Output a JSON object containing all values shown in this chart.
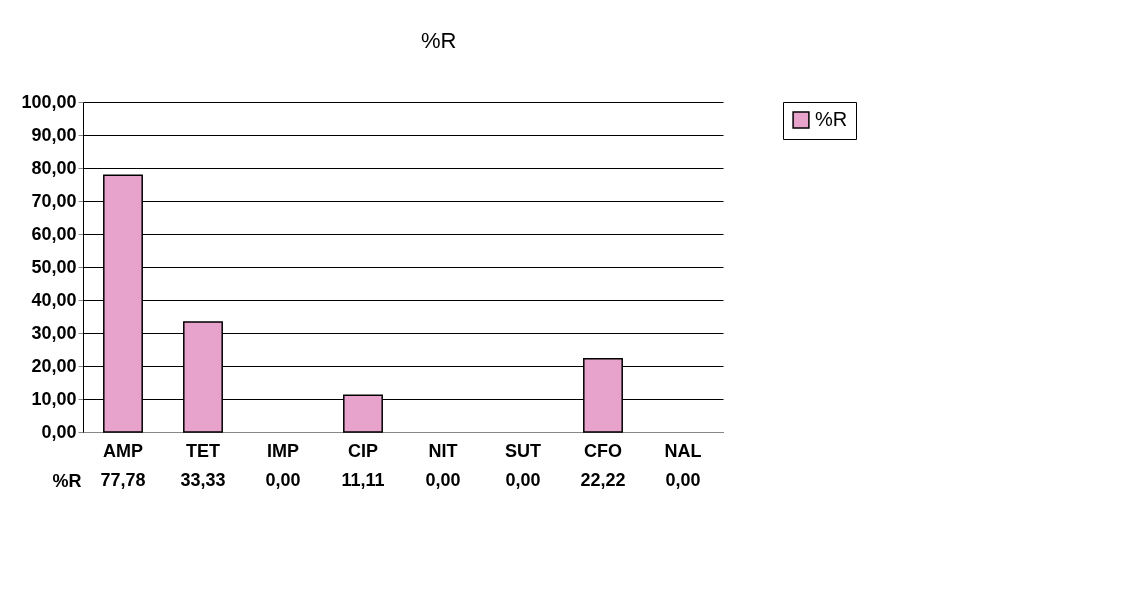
{
  "chart_data": {
    "type": "bar",
    "title": "%R",
    "categories": [
      "AMP",
      "TET",
      "IMP",
      "CIP",
      "NIT",
      "SUT",
      "CFO",
      "NAL"
    ],
    "series": [
      {
        "name": "%R",
        "color": "#e7a3cb",
        "values": [
          77.78,
          33.33,
          0,
          11.11,
          0,
          0,
          22.22,
          0
        ],
        "value_labels": [
          "77,78",
          "33,33",
          "0,00",
          "11,11",
          "0,00",
          "0,00",
          "22,22",
          "0,00"
        ]
      }
    ],
    "ylim": [
      0,
      100
    ],
    "yticks": [
      {
        "value": 0,
        "label": "0,00"
      },
      {
        "value": 10,
        "label": "10,00"
      },
      {
        "value": 20,
        "label": "20,00"
      },
      {
        "value": 30,
        "label": "30,00"
      },
      {
        "value": 40,
        "label": "40,00"
      },
      {
        "value": 50,
        "label": "50,00"
      },
      {
        "value": 60,
        "label": "60,00"
      },
      {
        "value": 70,
        "label": "70,00"
      },
      {
        "value": 80,
        "label": "80,00"
      },
      {
        "value": 90,
        "label": "90,00"
      },
      {
        "value": 100,
        "label": "100,00"
      }
    ],
    "grid": "y",
    "legend": "right"
  }
}
